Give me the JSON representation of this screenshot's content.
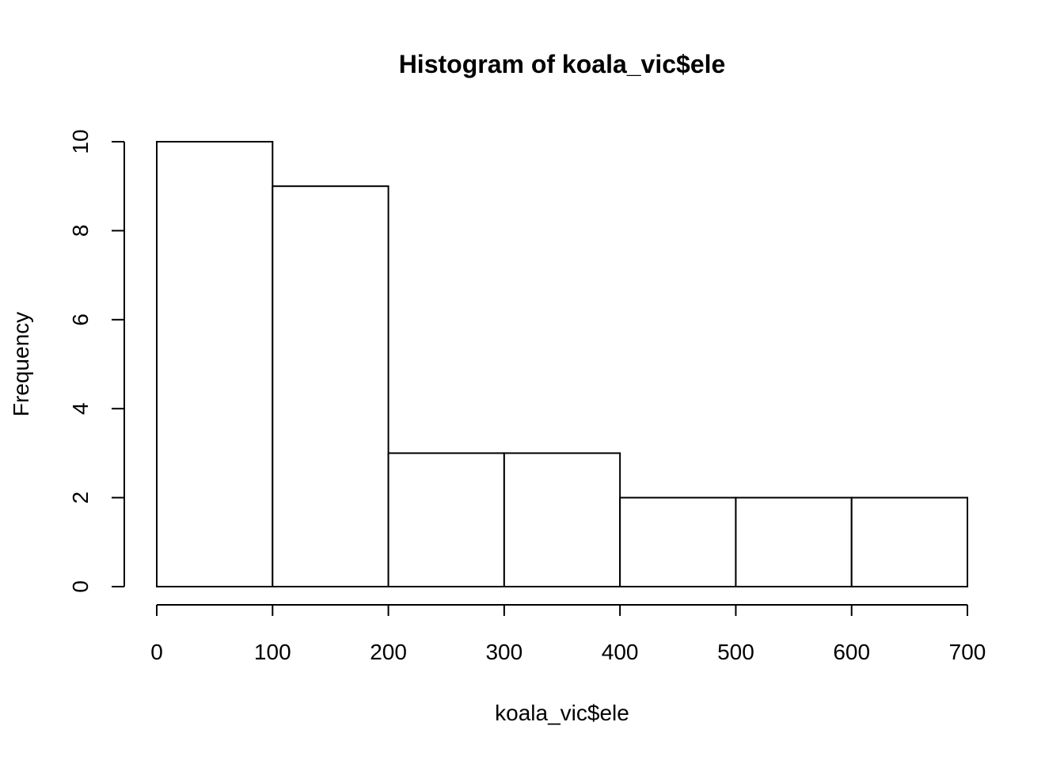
{
  "chart_data": {
    "type": "bar",
    "title": "Histogram of koala_vic$ele",
    "xlabel": "koala_vic$ele",
    "ylabel": "Frequency",
    "bins": [
      {
        "from": 0,
        "to": 100,
        "count": 10
      },
      {
        "from": 100,
        "to": 200,
        "count": 9
      },
      {
        "from": 200,
        "to": 300,
        "count": 3
      },
      {
        "from": 300,
        "to": 400,
        "count": 3
      },
      {
        "from": 400,
        "to": 500,
        "count": 2
      },
      {
        "from": 500,
        "to": 600,
        "count": 2
      },
      {
        "from": 600,
        "to": 700,
        "count": 2
      }
    ],
    "xlim": [
      0,
      700
    ],
    "ylim": [
      0,
      10
    ],
    "x_ticks": [
      0,
      100,
      200,
      300,
      400,
      500,
      600,
      700
    ],
    "y_ticks": [
      0,
      2,
      4,
      6,
      8,
      10
    ],
    "grid": false,
    "legend": "none",
    "colors": {
      "bar_fill": "#ffffff",
      "bar_stroke": "#000000",
      "background": "#ffffff"
    }
  }
}
